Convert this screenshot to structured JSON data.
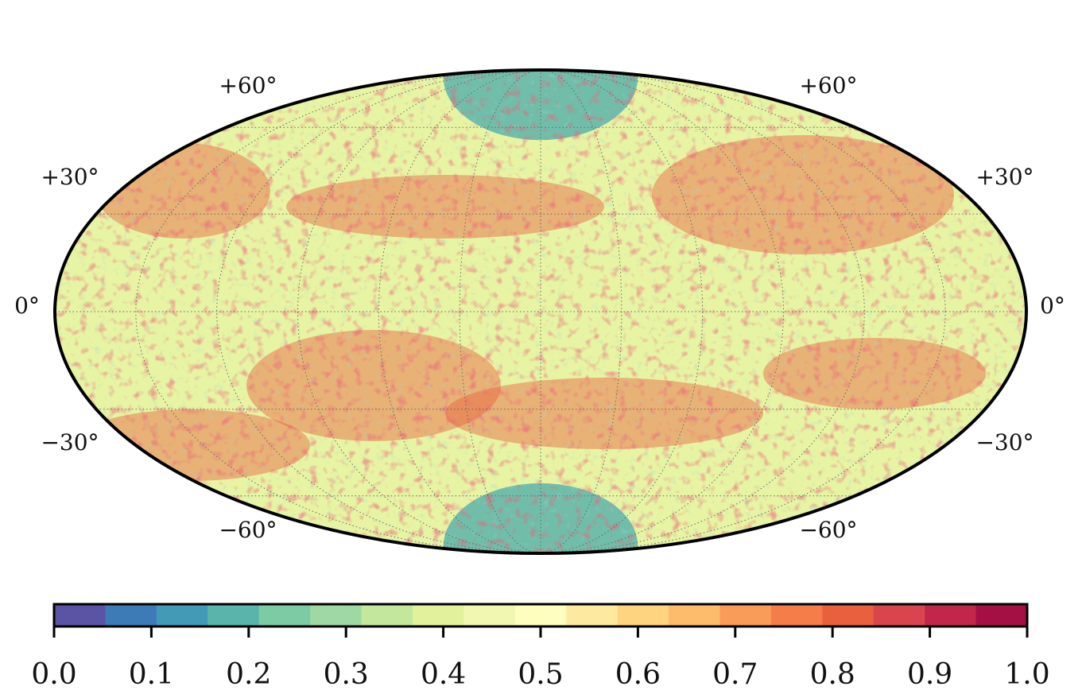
{
  "map": {
    "projection": "mollweide",
    "graticule": {
      "latitudes": [
        -60,
        -30,
        0,
        30,
        60
      ],
      "longitude_step_deg": 30,
      "style": "dotted"
    },
    "lat_labels": {
      "p60": "+60°",
      "p30": "+30°",
      "zero": "0°",
      "m30": "−30°",
      "m60": "−60°"
    },
    "field_description_values": {
      "pole_value": 0.2,
      "equator_value": 0.42,
      "band_peak_value": 0.8
    }
  },
  "colorbar": {
    "min": 0.0,
    "max": 1.0,
    "n_bins": 19,
    "colormap": "Spectral_r",
    "colors": [
      "#5b53a4",
      "#3c7bb6",
      "#439ab6",
      "#5ab4ac",
      "#7ccba4",
      "#9fd8a3",
      "#c4e79e",
      "#e2f19c",
      "#f1f7b1",
      "#fefebe",
      "#fee9a1",
      "#fed481",
      "#fdbb6c",
      "#f99c59",
      "#f57d4a",
      "#e8603e",
      "#d9444d",
      "#c3264b",
      "#a40f44"
    ],
    "ticks": [
      "0.0",
      "0.1",
      "0.2",
      "0.3",
      "0.4",
      "0.5",
      "0.6",
      "0.7",
      "0.8",
      "0.9",
      "1.0"
    ]
  }
}
